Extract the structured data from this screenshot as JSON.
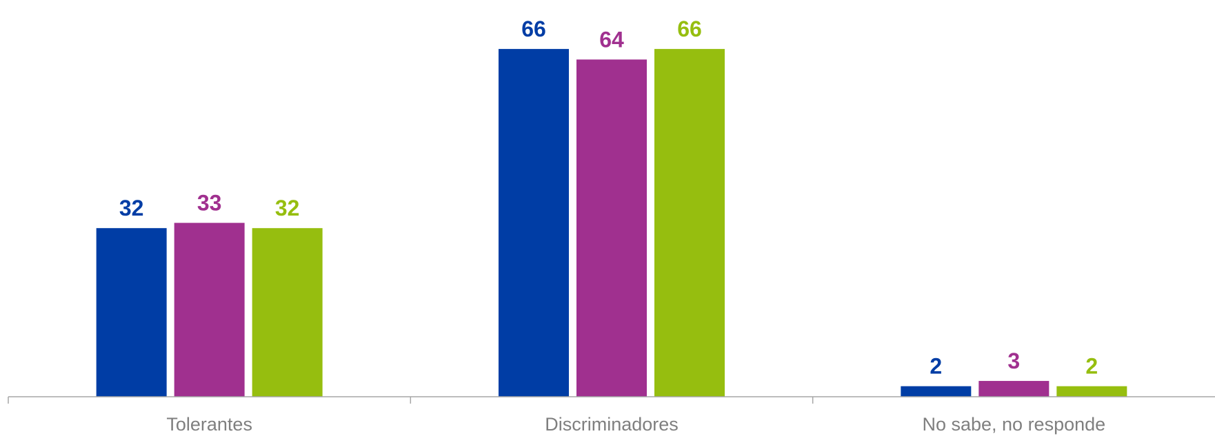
{
  "chart_data": {
    "type": "bar",
    "categories": [
      "Tolerantes",
      "Discriminadores",
      "No sabe, no responde"
    ],
    "series": [
      {
        "values": [
          32,
          66,
          2
        ],
        "color": "#003DA5"
      },
      {
        "values": [
          33,
          64,
          3
        ],
        "color": "#A0308F"
      },
      {
        "values": [
          32,
          66,
          2
        ],
        "color": "#96BE0F"
      }
    ],
    "title": "",
    "xlabel": "",
    "ylabel": "",
    "ylim": [
      0,
      72
    ],
    "grid": false,
    "legend": "none",
    "data_labels": true
  }
}
